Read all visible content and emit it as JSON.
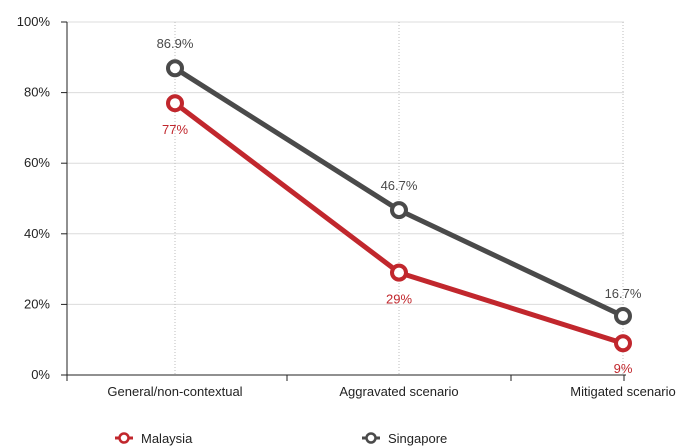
{
  "chart_data": {
    "type": "line",
    "categories": [
      "General/non-contextual",
      "Aggravated scenario",
      "Mitigated scenario"
    ],
    "ylim": [
      0,
      100
    ],
    "yticks": [
      0,
      20,
      40,
      60,
      80,
      100
    ],
    "ytick_labels": [
      "0%",
      "20%",
      "40%",
      "60%",
      "80%",
      "100%"
    ],
    "grid": true,
    "legend_position": "bottom",
    "series": [
      {
        "name": "Malaysia",
        "color": "#c1272d",
        "values": [
          77,
          29,
          9
        ],
        "labels": [
          "77%",
          "29%",
          "9%"
        ]
      },
      {
        "name": "Singapore",
        "color": "#4a4a4a",
        "values": [
          86.9,
          46.7,
          16.7
        ],
        "labels": [
          "86.9%",
          "46.7%",
          "16.7%"
        ]
      }
    ]
  }
}
